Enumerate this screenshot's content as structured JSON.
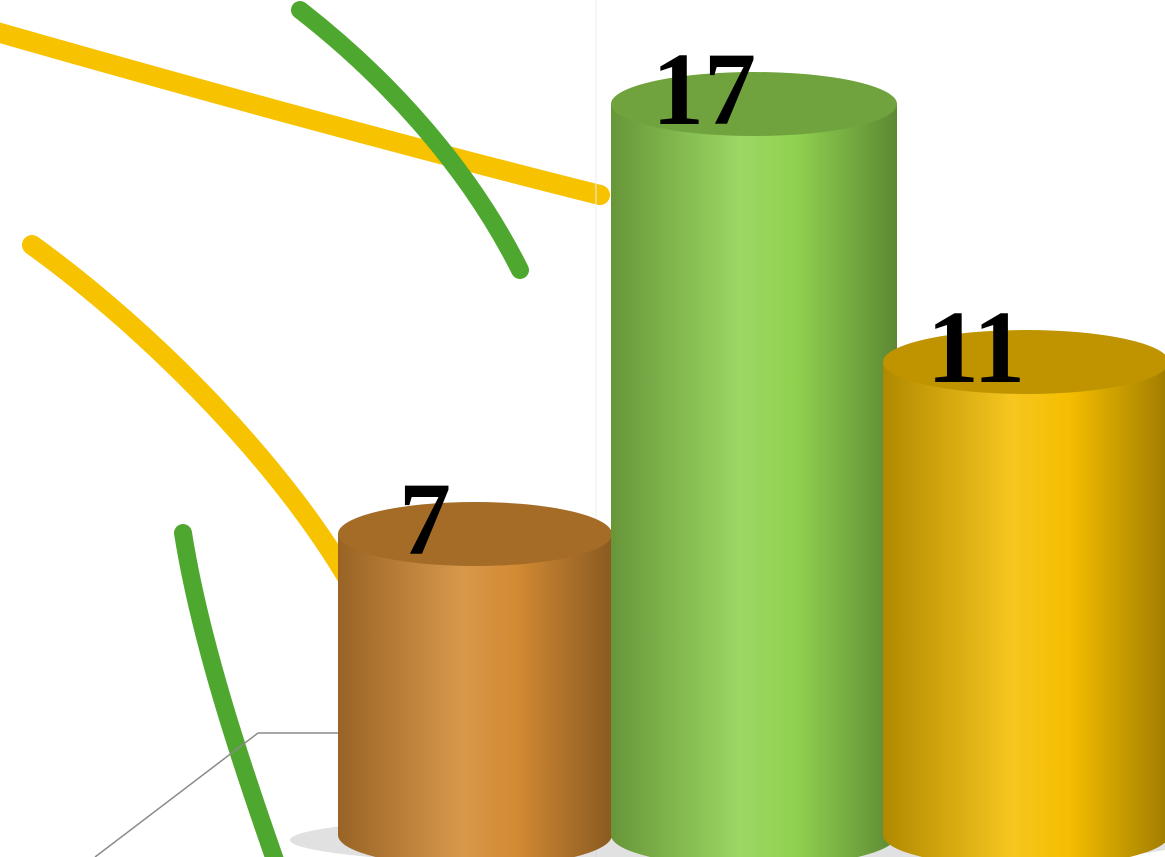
{
  "chart_data": {
    "type": "bar",
    "style": "3d-cylinder",
    "categories": [
      "",
      "",
      ""
    ],
    "values": [
      7,
      17,
      11
    ],
    "data_labels": [
      "7",
      "17",
      "11"
    ],
    "colors": [
      "#d38a33",
      "#8fd14f",
      "#f5be00"
    ],
    "title": "",
    "xlabel": "",
    "ylabel": "",
    "ylim": [
      0,
      18
    ],
    "grid": false,
    "legend": "none"
  },
  "decoration": {
    "curve_colors": [
      "#f7c200",
      "#4ea72e"
    ]
  }
}
